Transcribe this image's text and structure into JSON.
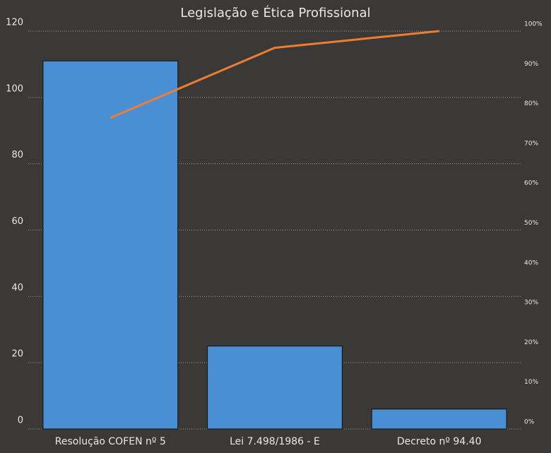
{
  "chart_data": {
    "type": "pareto",
    "title": "Legislação e Ética Profissional",
    "categories": [
      "Resolução COFEN nº 5",
      "Lei 7.498/1986 - E",
      "Decreto nº 94.40"
    ],
    "series": [
      {
        "type": "bar",
        "color": "#4a8fd4",
        "values": [
          111,
          25,
          6
        ]
      },
      {
        "type": "line",
        "color": "#ed7d31",
        "axis": "y2",
        "values": [
          78.2,
          95.8,
          100
        ]
      }
    ],
    "ylim": [
      0,
      120
    ],
    "yticks": [
      0,
      20,
      40,
      60,
      80,
      100,
      120
    ],
    "y2lim": [
      0,
      100
    ],
    "y2ticks": [
      {
        "value": 0,
        "label": "0%"
      },
      {
        "value": 10,
        "label": "10%"
      },
      {
        "value": 20,
        "label": "20%"
      },
      {
        "value": 30,
        "label": "30%"
      },
      {
        "value": 40,
        "label": "40%"
      },
      {
        "value": 50,
        "label": "50%"
      },
      {
        "value": 60,
        "label": "60%"
      },
      {
        "value": 70,
        "label": "70%"
      },
      {
        "value": 80,
        "label": "80%"
      },
      {
        "value": 90,
        "label": "90%"
      },
      {
        "value": 100,
        "label": "100%"
      }
    ],
    "grid": true
  }
}
